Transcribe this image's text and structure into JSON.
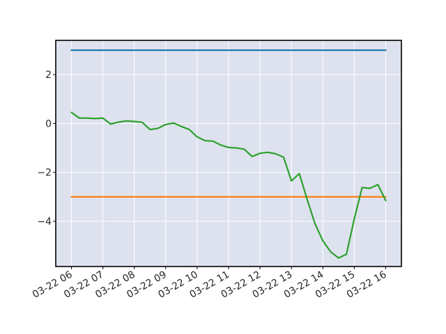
{
  "chart_data": {
    "type": "line",
    "title": "",
    "xlabel": "",
    "ylabel": "",
    "x_range": [
      "2024-03-22 05:30",
      "2024-03-22 16:30"
    ],
    "ylim": [
      -5.85,
      3.4
    ],
    "grid": true,
    "x_ticks": [
      "03-22 06",
      "03-22 07",
      "03-22 08",
      "03-22 09",
      "03-22 10",
      "03-22 11",
      "03-22 12",
      "03-22 13",
      "03-22 14",
      "03-22 15",
      "03-22 16"
    ],
    "y_ticks": [
      -4,
      -2,
      0,
      2
    ],
    "y_tick_labels": [
      "−4",
      "−2",
      "0",
      "2"
    ],
    "colors": {
      "plot_bg": "#dde2ee",
      "upper": "#1f77b4",
      "lower": "#ff7f0e",
      "signal": "#2ca02c"
    },
    "series": [
      {
        "key": "upper",
        "x": [
          "2024-03-22 06:00",
          "2024-03-22 16:00"
        ],
        "values": [
          3,
          3
        ]
      },
      {
        "key": "lower",
        "x": [
          "2024-03-22 06:00",
          "2024-03-22 16:00"
        ],
        "values": [
          -3,
          -3
        ]
      },
      {
        "key": "signal",
        "x": [
          "2024-03-22 06:00",
          "2024-03-22 06:15",
          "2024-03-22 06:30",
          "2024-03-22 06:45",
          "2024-03-22 07:00",
          "2024-03-22 07:15",
          "2024-03-22 07:30",
          "2024-03-22 07:45",
          "2024-03-22 08:00",
          "2024-03-22 08:15",
          "2024-03-22 08:30",
          "2024-03-22 08:45",
          "2024-03-22 09:00",
          "2024-03-22 09:15",
          "2024-03-22 09:30",
          "2024-03-22 09:45",
          "2024-03-22 10:00",
          "2024-03-22 10:15",
          "2024-03-22 10:30",
          "2024-03-22 10:45",
          "2024-03-22 11:00",
          "2024-03-22 11:15",
          "2024-03-22 11:30",
          "2024-03-22 11:45",
          "2024-03-22 12:00",
          "2024-03-22 12:15",
          "2024-03-22 12:30",
          "2024-03-22 12:45",
          "2024-03-22 13:00",
          "2024-03-22 13:15",
          "2024-03-22 13:30",
          "2024-03-22 13:45",
          "2024-03-22 14:00",
          "2024-03-22 14:15",
          "2024-03-22 14:30",
          "2024-03-22 14:45",
          "2024-03-22 15:00",
          "2024-03-22 15:15",
          "2024-03-22 15:30",
          "2024-03-22 15:45",
          "2024-03-22 16:00"
        ],
        "values": [
          0.45,
          0.22,
          0.22,
          0.2,
          0.22,
          -0.02,
          0.06,
          0.1,
          0.08,
          0.05,
          -0.25,
          -0.2,
          -0.04,
          0.02,
          -0.12,
          -0.25,
          -0.55,
          -0.7,
          -0.72,
          -0.88,
          -0.98,
          -1.0,
          -1.05,
          -1.35,
          -1.22,
          -1.18,
          -1.24,
          -1.38,
          -2.35,
          -2.05,
          -3.1,
          -4.1,
          -4.8,
          -5.25,
          -5.5,
          -5.35,
          -3.9,
          -2.62,
          -2.65,
          -2.5,
          -3.15
        ]
      }
    ]
  }
}
